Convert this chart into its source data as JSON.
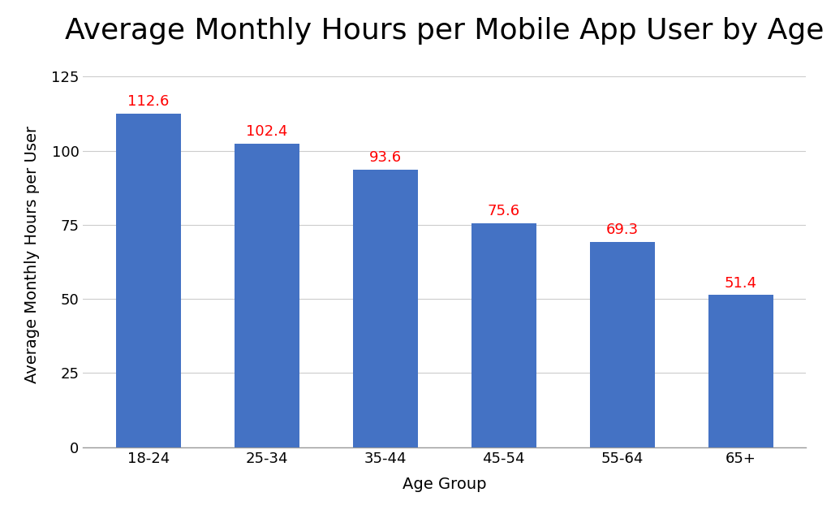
{
  "title": "Average Monthly Hours per Mobile App User by Age",
  "xlabel": "Age Group",
  "ylabel": "Average Monthly Hours per User",
  "categories": [
    "18-24",
    "25-34",
    "35-44",
    "45-54",
    "55-64",
    "65+"
  ],
  "values": [
    112.6,
    102.4,
    93.6,
    75.6,
    69.3,
    51.4
  ],
  "bar_color": "#4472C4",
  "label_color": "#FF0000",
  "background_color": "#FFFFFF",
  "ylim": [
    0,
    130
  ],
  "yticks": [
    0,
    25,
    50,
    75,
    100,
    125
  ],
  "title_fontsize": 26,
  "axis_label_fontsize": 14,
  "tick_fontsize": 13,
  "bar_label_fontsize": 13,
  "grid_color": "#CCCCCC",
  "bar_width": 0.55
}
